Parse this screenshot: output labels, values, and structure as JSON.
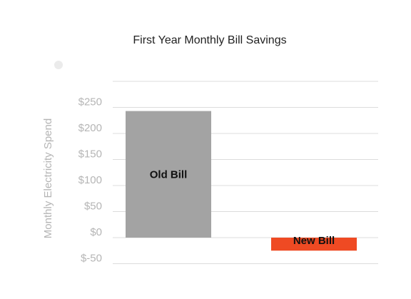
{
  "chart_data": {
    "type": "bar",
    "title": "First Year Monthly Bill Savings",
    "xlabel": "",
    "ylabel": "Monthly Electricity Spend",
    "categories": [
      "Old Bill",
      "New Bill"
    ],
    "values": [
      243,
      -25
    ],
    "data_labels": [
      "Old Bill",
      "New Bill"
    ],
    "y_ticks": [
      "$250",
      "$200",
      "$150",
      "$100",
      "$50",
      "$0",
      "$-50"
    ],
    "y_tick_values": [
      250,
      200,
      150,
      100,
      50,
      0,
      -50
    ],
    "ylim": [
      -50,
      300
    ],
    "grid": true,
    "legend": "top-left",
    "colors": {
      "old_bill": "#a3a3a3",
      "new_bill": "#ef4a23",
      "grid": "#dcdcdc",
      "tick_text": "#b5b5b5",
      "title_text": "#222222",
      "label_text": "#111111",
      "legend_marker": "#ebebeb"
    }
  }
}
